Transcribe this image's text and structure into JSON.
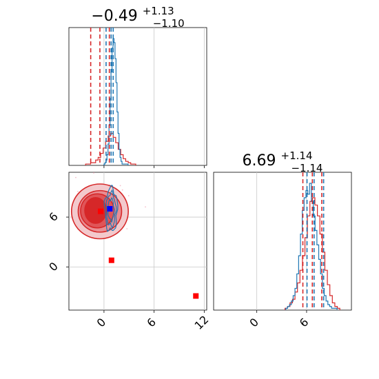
{
  "chart_data": {
    "type": "corner",
    "params": [
      {
        "title": {
          "value": "−0.49",
          "upper": "+1.13",
          "lower": "−1.10"
        },
        "range": [
          -4.2,
          12.3
        ],
        "ticks": [
          0,
          6,
          12
        ],
        "tick_labels": [
          "0",
          "6",
          "12"
        ],
        "hist_red": {
          "edges_start": -2.2,
          "bin_width": 0.3,
          "counts": [
            1,
            1,
            2,
            2,
            4,
            6,
            9,
            13,
            18,
            22,
            24,
            21,
            17,
            12,
            8,
            5,
            3,
            2,
            1,
            1
          ]
        },
        "hist_blue": {
          "edges_start": 0.0,
          "bin_width": 0.12,
          "counts": [
            1,
            2,
            4,
            8,
            16,
            30,
            50,
            70,
            88,
            95,
            92,
            80,
            62,
            40,
            24,
            12,
            6,
            3,
            1,
            1,
            1,
            1,
            1,
            1
          ]
        },
        "quantiles_red": [
          -1.59,
          -0.49,
          0.64
        ],
        "quantiles_blue": [
          0.25,
          0.85,
          1.1
        ]
      },
      {
        "title": {
          "value": "6.69",
          "upper": "+1.14",
          "lower": "−1.14"
        },
        "range": [
          -5.2,
          11.4
        ],
        "ticks": [
          0,
          6
        ],
        "tick_labels": [
          "0",
          "6"
        ],
        "hist_red": {
          "edges_start": 3.4,
          "bin_width": 0.3,
          "counts": [
            1,
            2,
            4,
            6,
            10,
            15,
            22,
            30,
            40,
            52,
            60,
            62,
            58,
            52,
            42,
            32,
            22,
            14,
            8,
            4,
            2,
            1
          ]
        },
        "hist_blue": {
          "edges_start": 3.5,
          "bin_width": 0.22,
          "counts": [
            1,
            2,
            3,
            5,
            8,
            12,
            20,
            30,
            42,
            55,
            62,
            66,
            64,
            70,
            60,
            52,
            44,
            36,
            28,
            20,
            12,
            8,
            5,
            3,
            2,
            1,
            1,
            1
          ]
        },
        "quantiles_red": [
          5.55,
          6.69,
          7.83
        ],
        "quantiles_blue": [
          6.05,
          6.9,
          8.05
        ]
      }
    ],
    "red_points": [
      {
        "x": -0.4,
        "y": 6.7
      },
      {
        "x": 0.9,
        "y": 0.8
      },
      {
        "x": 11.0,
        "y": -3.5
      }
    ],
    "blue_points": [
      {
        "x": 0.7,
        "y": 7.0
      }
    ],
    "red_contours": [
      {
        "cx": -0.49,
        "cy": 6.69,
        "rx": 3.4,
        "ry": 3.3
      },
      {
        "cx": -0.49,
        "cy": 6.69,
        "rx": 2.6,
        "ry": 2.5
      },
      {
        "cx": -0.8,
        "cy": 6.75,
        "rx": 2.0,
        "ry": 2.05
      },
      {
        "cx": -1.0,
        "cy": 6.8,
        "rx": 1.3,
        "ry": 1.55
      }
    ],
    "blue_contour_center": {
      "x": 0.85,
      "y": 6.9
    },
    "grid": true,
    "colors": {
      "red": "#d62728",
      "blue": "#1f77b4",
      "grid": "#c8c8c8"
    }
  }
}
